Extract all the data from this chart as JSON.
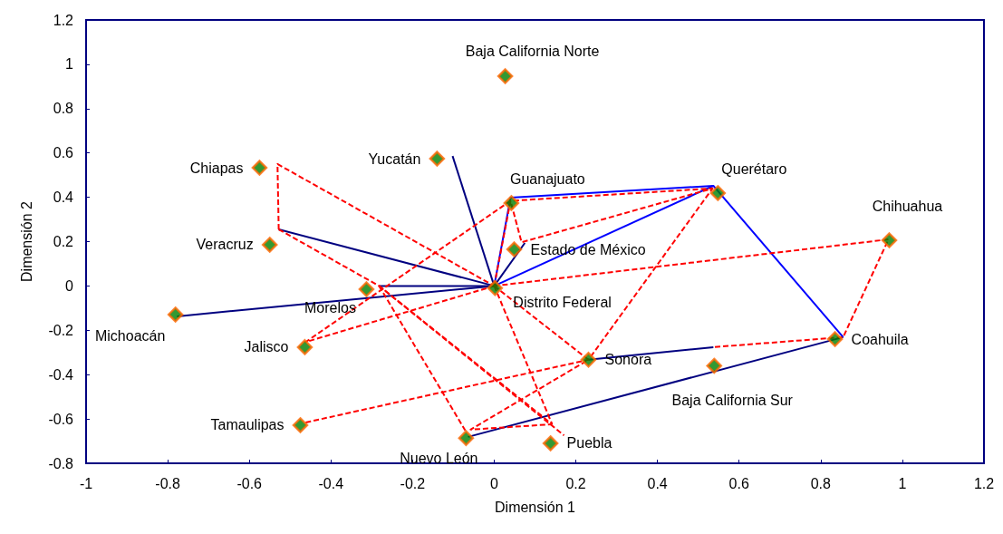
{
  "chart_data": {
    "type": "scatter",
    "xlabel": "Dimensión 1",
    "ylabel": "Dimensión 2",
    "xlim": [
      -1,
      1.2
    ],
    "ylim": [
      -0.8,
      1.2
    ],
    "xticks": [
      -1,
      -0.8,
      -0.6,
      -0.4,
      -0.2,
      0,
      0.2,
      0.4,
      0.6,
      0.8,
      1,
      1.2
    ],
    "yticks": [
      -0.8,
      -0.6,
      -0.4,
      -0.2,
      0,
      0.2,
      0.4,
      0.6,
      0.8,
      1,
      1.2
    ],
    "grid": false,
    "series": [
      {
        "color": "#008000",
        "marker": "diamond",
        "x": [
          0.027,
          -0.575,
          -0.14,
          0.042,
          0.548,
          0.968,
          -0.55,
          0.049,
          -0.313,
          0.002,
          -0.781,
          -0.464,
          0.231,
          0.835,
          0.539,
          -0.475,
          -0.069,
          0.138
        ],
        "values": [
          0.946,
          0.533,
          0.574,
          0.374,
          0.419,
          0.206,
          0.186,
          0.165,
          -0.015,
          -0.01,
          -0.129,
          -0.276,
          -0.333,
          -0.24,
          -0.36,
          -0.628,
          -0.686,
          -0.71
        ]
      },
      {
        "type": "line",
        "color": "#000080",
        "line_style": "solid",
        "x": [
          -0.777,
          0
        ],
        "values": [
          -0.137,
          0
        ]
      },
      {
        "type": "line",
        "color": "#000080",
        "line_style": "solid",
        "x": [
          -0.282,
          0
        ],
        "values": [
          0,
          0
        ]
      },
      {
        "type": "line",
        "color": "#000080",
        "line_style": "solid",
        "x": [
          -0.528,
          0
        ],
        "values": [
          0.255,
          0
        ]
      },
      {
        "type": "line",
        "color": "#000080",
        "line_style": "solid",
        "x": [
          -0.102,
          0
        ],
        "values": [
          0.586,
          0
        ]
      },
      {
        "type": "line",
        "color": "#000080",
        "line_style": "solid",
        "x": [
          0,
          0.075
        ],
        "values": [
          0,
          0.194
        ]
      },
      {
        "type": "line",
        "color": "#000080",
        "line_style": "solid",
        "x": [
          0.231,
          0.537
        ],
        "values": [
          -0.333,
          -0.276
        ]
      },
      {
        "type": "line",
        "color": "#000080",
        "line_style": "solid",
        "x": [
          -0.064,
          0.855
        ],
        "values": [
          -0.681,
          -0.231
        ]
      },
      {
        "type": "line",
        "color": "#0000ff",
        "line_style": "solid",
        "x": [
          0,
          0.537
        ],
        "values": [
          0,
          0.452
        ]
      },
      {
        "type": "line",
        "color": "#0000ff",
        "line_style": "solid",
        "x": [
          0,
          0.04,
          0.537,
          0.855
        ],
        "values": [
          0,
          0.398,
          0.452,
          -0.231
        ]
      },
      {
        "type": "line",
        "color": "#ff0000",
        "line_style": "dashed",
        "x": [
          -0.528,
          -0.531,
          0
        ],
        "values": [
          0.255,
          0.55,
          0
        ]
      },
      {
        "type": "line",
        "color": "#ff0000",
        "line_style": "dashed",
        "x": [
          -0.528,
          -0.282,
          0.142
        ],
        "values": [
          0.255,
          0,
          -0.624
        ]
      },
      {
        "type": "line",
        "color": "#ff0000",
        "line_style": "dashed",
        "x": [
          -0.282,
          -0.071
        ],
        "values": [
          0,
          -0.652
        ]
      },
      {
        "type": "line",
        "color": "#ff0000",
        "line_style": "dashed",
        "x": [
          -0.282,
          0.171
        ],
        "values": [
          0,
          -0.674
        ]
      },
      {
        "type": "line",
        "color": "#ff0000",
        "line_style": "dashed",
        "x": [
          0,
          -0.462,
          0.04
        ],
        "values": [
          0,
          -0.253,
          0.384
        ]
      },
      {
        "type": "line",
        "color": "#ff0000",
        "line_style": "dashed",
        "x": [
          0,
          0.966,
          0.855,
          0.537
        ],
        "values": [
          0,
          0.21,
          -0.231,
          -0.276
        ]
      },
      {
        "type": "line",
        "color": "#ff0000",
        "line_style": "dashed",
        "x": [
          -0.462,
          0.231,
          0.535
        ],
        "values": [
          -0.616,
          -0.333,
          0.44
        ]
      },
      {
        "type": "line",
        "color": "#ff0000",
        "line_style": "dashed",
        "x": [
          0,
          0.231,
          -0.058,
          0.142
        ],
        "values": [
          0,
          -0.333,
          -0.648,
          -0.624
        ]
      },
      {
        "type": "line",
        "color": "#ff0000",
        "line_style": "dashed",
        "x": [
          0,
          0.142
        ],
        "values": [
          0,
          -0.624
        ]
      },
      {
        "type": "line",
        "color": "#ff0000",
        "line_style": "dashed",
        "x": [
          0,
          0.04,
          0.535,
          0.067,
          0.04
        ],
        "values": [
          0,
          0.384,
          0.44,
          0.197,
          0.384
        ]
      }
    ],
    "annotations": [
      {
        "text": "Baja California Norte",
        "x": 0.027,
        "y": 0.946
      },
      {
        "text": "Chiapas",
        "x": -0.575,
        "y": 0.533
      },
      {
        "text": "Yucatán",
        "x": -0.14,
        "y": 0.574
      },
      {
        "text": "Guanajuato",
        "x": 0.042,
        "y": 0.374
      },
      {
        "text": "Querétaro",
        "x": 0.548,
        "y": 0.419
      },
      {
        "text": "Chihuahua",
        "x": 0.968,
        "y": 0.206
      },
      {
        "text": "Veracruz",
        "x": -0.55,
        "y": 0.186
      },
      {
        "text": "Estado de México",
        "x": 0.049,
        "y": 0.165
      },
      {
        "text": "Morelos",
        "x": -0.313,
        "y": -0.015
      },
      {
        "text": "Distrito Federal",
        "x": 0.002,
        "y": -0.01
      },
      {
        "text": "Michoacán",
        "x": -0.781,
        "y": -0.129
      },
      {
        "text": "Jalisco",
        "x": -0.464,
        "y": -0.276
      },
      {
        "text": "Sonora",
        "x": 0.231,
        "y": -0.333
      },
      {
        "text": "Coahuila",
        "x": 0.835,
        "y": -0.24
      },
      {
        "text": "Baja California Sur",
        "x": 0.539,
        "y": -0.36
      },
      {
        "text": "Tamaulipas",
        "x": -0.475,
        "y": -0.628
      },
      {
        "text": "Nuevo León",
        "x": -0.069,
        "y": -0.686
      },
      {
        "text": "Puebla",
        "x": 0.138,
        "y": -0.71
      }
    ]
  }
}
